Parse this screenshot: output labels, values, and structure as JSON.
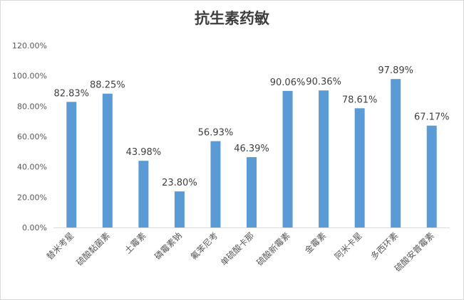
{
  "chart_data": {
    "type": "bar",
    "title": "抗生素药敏",
    "xlabel": "",
    "ylabel": "",
    "ylim": [
      0,
      120
    ],
    "y_ticks": [
      "0.00%",
      "20.00%",
      "40.00%",
      "60.00%",
      "80.00%",
      "100.00%",
      "120.00%"
    ],
    "grid": false,
    "legend": "none",
    "bar_color": "#5b9bd5",
    "categories": [
      "替米考星",
      "硫酸黏菌素",
      "土霉素",
      "磷霉素钠",
      "氟苯尼考",
      "单硫酸卡那",
      "硫酸新霉素",
      "金霉素",
      "阿米卡星",
      "多西环素",
      "硫酸安普霉素"
    ],
    "values": [
      82.83,
      88.25,
      43.98,
      23.8,
      56.93,
      46.39,
      90.06,
      90.36,
      78.61,
      97.89,
      67.17
    ],
    "data_labels": [
      "82.83%",
      "88.25%",
      "43.98%",
      "23.80%",
      "56.93%",
      "46.39%",
      "90.06%",
      "90.36%",
      "78.61%",
      "97.89%",
      "67.17%"
    ]
  }
}
